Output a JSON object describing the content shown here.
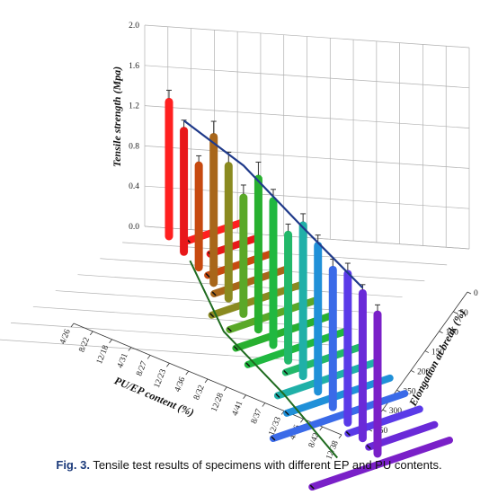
{
  "chart_data": {
    "type": "bar",
    "categories": [
      "4/26",
      "8/22",
      "12/18",
      "4/31",
      "8/27",
      "12/23",
      "4/36",
      "8/32",
      "12/28",
      "4/41",
      "8/37",
      "12/33",
      "4/46",
      "8/42",
      "12/38"
    ],
    "xlabel": "PU/EP content (%)",
    "ylabel": "Tensile strength (Mpa)",
    "zlabel": "Elongation at break (%)",
    "ylim": [
      0.0,
      2.0
    ],
    "yticks": [
      "0.0",
      "0.4",
      "0.8",
      "1.2",
      "1.6",
      "2.0"
    ],
    "zlim": [
      0,
      350
    ],
    "zticks": [
      "0",
      "50",
      "100",
      "150",
      "200",
      "250",
      "300",
      "350"
    ],
    "grid": true,
    "series": [
      {
        "values": [
          1.5,
          1.36,
          1.16,
          1.62,
          1.48,
          1.31,
          1.67,
          1.6,
          1.41,
          1.67,
          1.62,
          1.53,
          1.65,
          1.61,
          1.55
        ]
      },
      {
        "values": [
          92,
          80,
          110,
          125,
          155,
          150,
          165,
          170,
          130,
          170,
          180,
          230,
          125,
          115,
          240
        ]
      }
    ],
    "trend_lines": [
      {
        "axis": "tensile",
        "color": "#1f3a8a",
        "values": [
          1.42,
          1.6,
          1.6,
          1.62
        ]
      },
      {
        "axis": "elongation",
        "color": "#1f6b1f",
        "values": [
          115,
          160,
          160,
          170
        ]
      }
    ],
    "error": [
      0.08,
      0.07,
      0.06,
      0.12,
      0.1,
      0.09,
      0.13,
      0.08,
      0.07,
      0.08,
      0.07,
      0.07,
      0.07,
      0.05,
      0.06
    ],
    "colors": [
      "#ff2020",
      "#e8181a",
      "#c74a10",
      "#a8661a",
      "#8a8a20",
      "#5aa828",
      "#28b030",
      "#20b840",
      "#22b86a",
      "#20b0a8",
      "#2090d8",
      "#3a6ae8",
      "#5a3ae8",
      "#6a2ad8",
      "#7a20c8"
    ]
  },
  "caption": {
    "label": "Fig. 3.",
    "text": "Tensile test results of specimens with different EP and PU contents."
  }
}
